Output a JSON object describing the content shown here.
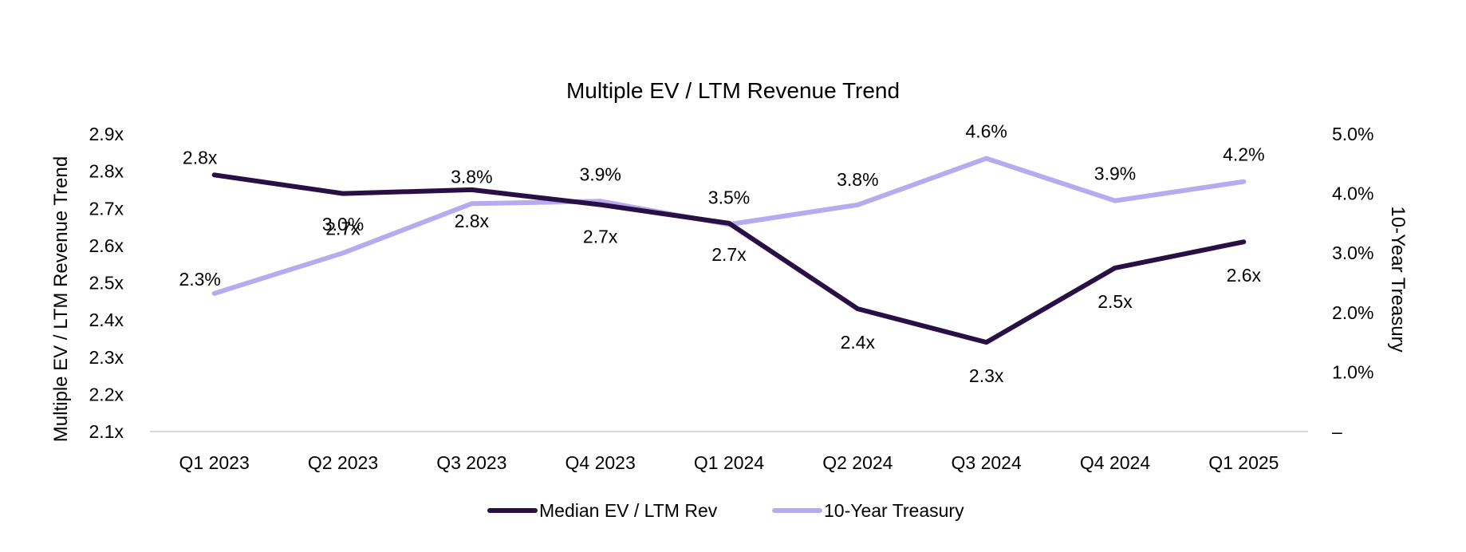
{
  "chart_data": {
    "type": "line",
    "title": "Multiple EV / LTM Revenue Trend",
    "categories": [
      "Q1 2023",
      "Q2 2023",
      "Q3 2023",
      "Q4 2023",
      "Q1 2024",
      "Q2 2024",
      "Q3 2024",
      "Q4 2024",
      "Q1 2025"
    ],
    "y_axis": {
      "label": "Multiple EV / LTM Revenue Trend",
      "min": 2.1,
      "max": 2.9,
      "ticks": [
        "2.1x",
        "2.2x",
        "2.3x",
        "2.4x",
        "2.5x",
        "2.6x",
        "2.7x",
        "2.8x",
        "2.9x"
      ]
    },
    "y2_axis": {
      "label": "10-Year Treasury",
      "min": 0.0,
      "max": 5.0,
      "ticks": [
        "–",
        "1.0%",
        "2.0%",
        "3.0%",
        "4.0%",
        "5.0%"
      ]
    },
    "series": [
      {
        "name": "Median EV / LTM Rev",
        "axis": "left",
        "color": "#2a0f45",
        "values": [
          2.79,
          2.74,
          2.75,
          2.71,
          2.66,
          2.43,
          2.34,
          2.54,
          2.61
        ],
        "labels": [
          "2.8x",
          "2.7x",
          "2.8x",
          "2.7x",
          "2.7x",
          "2.4x",
          "2.3x",
          "2.5x",
          "2.6x"
        ]
      },
      {
        "name": "10-Year Treasury",
        "axis": "right",
        "color": "#b7abef",
        "values": [
          2.32,
          3.0,
          3.83,
          3.87,
          3.48,
          3.81,
          4.59,
          3.88,
          4.2
        ],
        "labels": [
          "2.3%",
          "3.0%",
          "3.8%",
          "3.9%",
          "3.5%",
          "3.8%",
          "4.6%",
          "3.9%",
          "4.2%"
        ]
      }
    ],
    "legend": {
      "position": "bottom"
    },
    "grid": false
  }
}
